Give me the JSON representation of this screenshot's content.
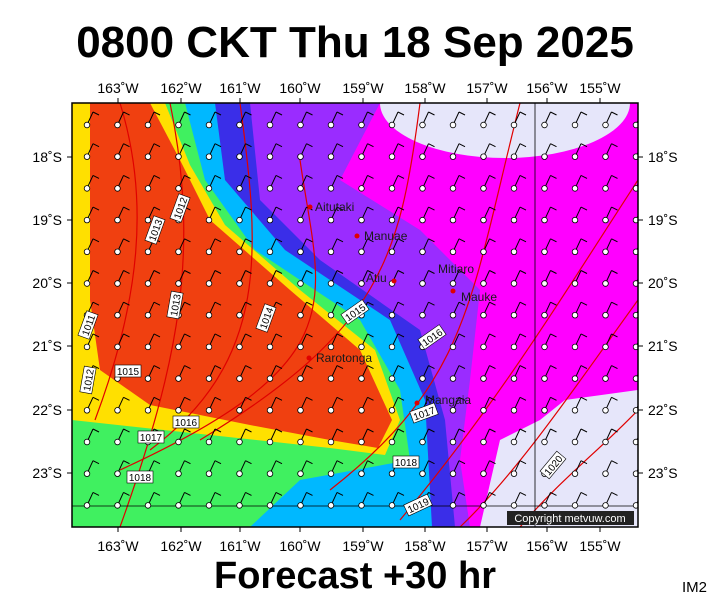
{
  "title": "0800 CKT Thu 18 Sep 2025",
  "footer": "Forecast +30 hr",
  "corner_label": "IM2",
  "copyright": "Copyright metvuw.com",
  "longitude_labels": [
    "163˚W",
    "162˚W",
    "161˚W",
    "160˚W",
    "159˚W",
    "158˚W",
    "157˚W",
    "156˚W",
    "155˚W"
  ],
  "latitude_labels": [
    "18˚S",
    "19˚S",
    "20˚S",
    "21˚S",
    "22˚S",
    "23˚S"
  ],
  "places": [
    "Aitutaki",
    "Manuae",
    "Atiu",
    "Mitiaro",
    "Mauke",
    "Rarotonga",
    "Mangaia"
  ],
  "isobar_labels": [
    1013,
    1012,
    1013,
    1011,
    1012,
    1015,
    1014,
    1015,
    1016,
    1016,
    1017,
    1018,
    1017,
    1018,
    1019,
    1020
  ]
}
